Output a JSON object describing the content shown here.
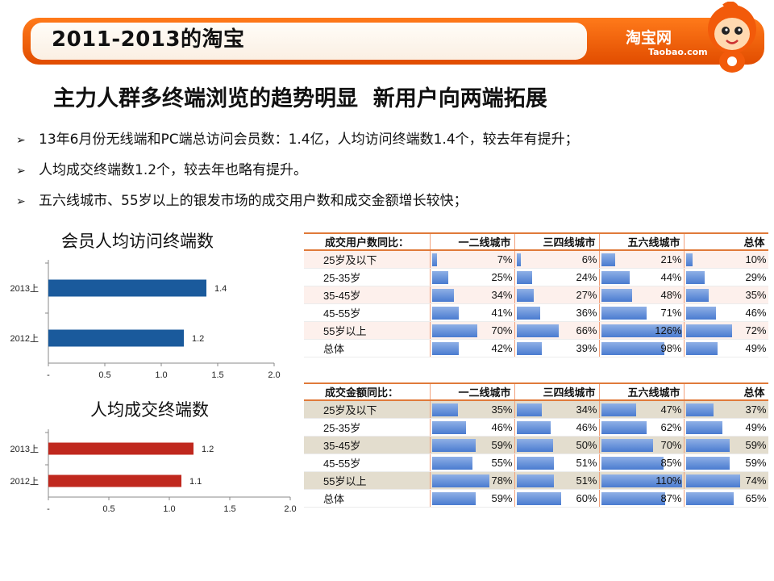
{
  "header": {
    "title": "2011-2013的淘宝",
    "logo": "淘宝网",
    "logo_sub": "Taobao.com"
  },
  "subtitle": "主力人群多终端浏览的趋势明显  新用户向两端拓展",
  "bullets": [
    "13年6月份无线端和PC端总访问会员数：1.4亿，人均访问终端数1.4个，较去年有提升；",
    "人均成交终端数1.2个，较去年也略有提升。",
    "五六线城市、55岁以上的银发市场的成交用户数和成交金额增长较快；"
  ],
  "colors": {
    "orange": "#f26a10",
    "blue_bar": "#1a5a9c",
    "red_bar": "#c0281e",
    "table_bar": "#4a7bd0"
  },
  "chart_data": [
    {
      "type": "bar",
      "orientation": "horizontal",
      "title": "会员人均访问终端数",
      "categories": [
        "2013上",
        "2012上"
      ],
      "values": [
        1.4,
        1.2
      ],
      "data_labels": [
        "1.4",
        "1.2"
      ],
      "xlim": [
        0,
        2.0
      ],
      "xticks": [
        "-",
        "0.5",
        "1.0",
        "1.5",
        "2.0"
      ],
      "color": "#1a5a9c"
    },
    {
      "type": "bar",
      "orientation": "horizontal",
      "title": "人均成交终端数",
      "categories": [
        "2013上",
        "2012上"
      ],
      "values": [
        1.2,
        1.1
      ],
      "data_labels": [
        "1.2",
        "1.1"
      ],
      "xlim": [
        0,
        2.0
      ],
      "xticks": [
        "-",
        "0.5",
        "1.0",
        "1.5",
        "2.0"
      ],
      "color": "#c0281e"
    },
    {
      "type": "table",
      "title": "成交用户数同比：",
      "columns": [
        "一二线城市",
        "三四线城市",
        "五六线城市",
        "总体"
      ],
      "rows": [
        {
          "label": "25岁及以下",
          "values": [
            7,
            6,
            21,
            10
          ],
          "text": [
            "7%",
            "6%",
            "21%",
            "10%"
          ]
        },
        {
          "label": "25-35岁",
          "values": [
            25,
            24,
            44,
            29
          ],
          "text": [
            "25%",
            "24%",
            "44%",
            "29%"
          ]
        },
        {
          "label": "35-45岁",
          "values": [
            34,
            27,
            48,
            35
          ],
          "text": [
            "34%",
            "27%",
            "48%",
            "35%"
          ]
        },
        {
          "label": "45-55岁",
          "values": [
            41,
            36,
            71,
            46
          ],
          "text": [
            "41%",
            "36%",
            "71%",
            "46%"
          ]
        },
        {
          "label": "55岁以上",
          "values": [
            70,
            66,
            126,
            72
          ],
          "text": [
            "70%",
            "66%",
            "126%",
            "72%"
          ]
        },
        {
          "label": "总体",
          "values": [
            42,
            39,
            98,
            49
          ],
          "text": [
            "42%",
            "39%",
            "98%",
            "49%"
          ]
        }
      ]
    },
    {
      "type": "table",
      "title": "成交金额同比：",
      "columns": [
        "一二线城市",
        "三四线城市",
        "五六线城市",
        "总体"
      ],
      "rows": [
        {
          "label": "25岁及以下",
          "values": [
            35,
            34,
            47,
            37
          ],
          "text": [
            "35%",
            "34%",
            "47%",
            "37%"
          ]
        },
        {
          "label": "25-35岁",
          "values": [
            46,
            46,
            62,
            49
          ],
          "text": [
            "46%",
            "46%",
            "62%",
            "49%"
          ]
        },
        {
          "label": "35-45岁",
          "values": [
            59,
            50,
            70,
            59
          ],
          "text": [
            "59%",
            "50%",
            "70%",
            "59%"
          ]
        },
        {
          "label": "45-55岁",
          "values": [
            55,
            51,
            85,
            59
          ],
          "text": [
            "55%",
            "51%",
            "85%",
            "59%"
          ]
        },
        {
          "label": "55岁以上",
          "values": [
            78,
            51,
            110,
            74
          ],
          "text": [
            "78%",
            "51%",
            "110%",
            "74%"
          ]
        },
        {
          "label": "总体",
          "values": [
            59,
            60,
            87,
            65
          ],
          "text": [
            "59%",
            "60%",
            "87%",
            "65%"
          ]
        }
      ]
    }
  ]
}
